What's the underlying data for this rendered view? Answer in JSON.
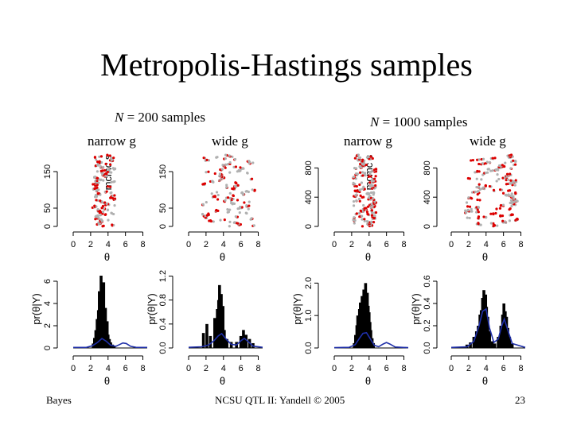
{
  "slide": {
    "title": "Metropolis-Hastings samples",
    "footer_left": "Bayes",
    "footer_center": "NCSU QTL II: Yandell © 2005",
    "page_number": "23"
  },
  "groups": [
    {
      "n_symbol": "N",
      "n_text": "= 200 samples",
      "narrow_label": "narrow g",
      "wide_label": "wide g"
    },
    {
      "n_symbol": "N",
      "n_text": "= 1000 samples",
      "narrow_label": "narrow g",
      "wide_label": "wide g"
    }
  ],
  "chart_data": [
    {
      "type": "scatter",
      "panel": "trace-n200-narrow",
      "ylabel": "mcmc s",
      "xlabel": "θ",
      "xticks": [
        "0",
        "2",
        "4",
        "6",
        "8"
      ],
      "yticks": [
        "0",
        "50",
        "150"
      ],
      "xlim": [
        0,
        8.5
      ],
      "ylim": [
        0,
        200
      ],
      "series": [
        {
          "color": "#b0b0b0"
        },
        {
          "color": "#dd0000"
        }
      ],
      "x_range": [
        2.2,
        4.8
      ],
      "n_points": 200
    },
    {
      "type": "scatter",
      "panel": "trace-n200-wide",
      "ylabel": "",
      "xlabel": "θ",
      "xticks": [
        "0",
        "2",
        "4",
        "6",
        "8"
      ],
      "yticks": [
        "0",
        "50",
        "150"
      ],
      "xlim": [
        0,
        8.5
      ],
      "ylim": [
        0,
        200
      ],
      "series": [
        {
          "color": "#b0b0b0"
        },
        {
          "color": "#dd0000"
        }
      ],
      "x_range": [
        1.6,
        7.6
      ],
      "n_points": 200
    },
    {
      "type": "scatter",
      "panel": "trace-n1000-narrow",
      "ylabel": "mcmc s",
      "xlabel": "θ",
      "xticks": [
        "0",
        "2",
        "4",
        "6",
        "8"
      ],
      "yticks": [
        "0",
        "400",
        "800"
      ],
      "xlim": [
        0,
        8.5
      ],
      "ylim": [
        0,
        1000
      ],
      "series": [
        {
          "color": "#b0b0b0"
        },
        {
          "color": "#dd0000"
        }
      ],
      "x_range": [
        2.2,
        4.8
      ],
      "n_points": 1000
    },
    {
      "type": "scatter",
      "panel": "trace-n1000-wide",
      "ylabel": "",
      "xlabel": "θ",
      "xticks": [
        "0",
        "2",
        "4",
        "6",
        "8"
      ],
      "yticks": [
        "0",
        "400",
        "800"
      ],
      "xlim": [
        0,
        8.5
      ],
      "ylim": [
        0,
        1000
      ],
      "series": [
        {
          "color": "#b0b0b0"
        },
        {
          "color": "#dd0000"
        }
      ],
      "x_range": [
        1.6,
        7.6
      ],
      "n_points": 1000
    },
    {
      "type": "bar",
      "panel": "hist-n200-narrow",
      "ylabel": "pr(θ|Y)",
      "xlabel": "θ",
      "xticks": [
        "0",
        "2",
        "4",
        "6",
        "8"
      ],
      "yticks": [
        "0",
        "2",
        "4",
        "6"
      ],
      "xlim": [
        0,
        8.5
      ],
      "ylim": [
        0,
        7
      ],
      "bars": [
        [
          2.3,
          0.4
        ],
        [
          2.45,
          0.9
        ],
        [
          2.6,
          1.6
        ],
        [
          2.75,
          2.6
        ],
        [
          2.9,
          3.4
        ],
        [
          3.0,
          5.1
        ],
        [
          3.1,
          4.2
        ],
        [
          3.2,
          6.5
        ],
        [
          3.3,
          3.1
        ],
        [
          3.4,
          4.6
        ],
        [
          3.5,
          5.9
        ],
        [
          3.6,
          2.8
        ],
        [
          3.7,
          3.6
        ],
        [
          3.8,
          1.9
        ],
        [
          3.9,
          2.4
        ],
        [
          4.0,
          1.2
        ],
        [
          4.15,
          0.8
        ],
        [
          4.3,
          0.5
        ],
        [
          4.5,
          0.3
        ],
        [
          4.7,
          0.15
        ]
      ],
      "curve": [
        [
          0.0,
          0.05
        ],
        [
          1.5,
          0.05
        ],
        [
          2.2,
          0.2
        ],
        [
          2.8,
          0.5
        ],
        [
          3.3,
          0.85
        ],
        [
          3.8,
          0.6
        ],
        [
          4.3,
          0.25
        ],
        [
          4.9,
          0.15
        ],
        [
          5.3,
          0.3
        ],
        [
          5.7,
          0.45
        ],
        [
          6.1,
          0.4
        ],
        [
          6.6,
          0.15
        ],
        [
          7.2,
          0.06
        ],
        [
          8.5,
          0.05
        ]
      ]
    },
    {
      "type": "bar",
      "panel": "hist-n200-wide",
      "ylabel": "pr(θ|Y)",
      "xlabel": "θ",
      "xticks": [
        "0",
        "2",
        "4",
        "6",
        "8"
      ],
      "yticks": [
        "0.0",
        "0.4",
        "0.8",
        "1.2"
      ],
      "xlim": [
        0,
        8.5
      ],
      "ylim": [
        0,
        1.3
      ],
      "bars": [
        [
          1.7,
          0.25
        ],
        [
          2.1,
          0.4
        ],
        [
          2.5,
          0.2
        ],
        [
          3.0,
          0.5
        ],
        [
          3.3,
          0.65
        ],
        [
          3.45,
          0.8
        ],
        [
          3.55,
          1.05
        ],
        [
          3.65,
          0.6
        ],
        [
          3.75,
          0.9
        ],
        [
          3.85,
          0.45
        ],
        [
          3.95,
          0.7
        ],
        [
          4.1,
          0.3
        ],
        [
          4.4,
          0.15
        ],
        [
          4.9,
          0.1
        ],
        [
          5.5,
          0.1
        ],
        [
          6.0,
          0.2
        ],
        [
          6.3,
          0.3
        ],
        [
          6.6,
          0.22
        ],
        [
          7.0,
          0.15
        ],
        [
          7.4,
          0.08
        ]
      ],
      "curve": [
        [
          0.0,
          0.01
        ],
        [
          1.5,
          0.02
        ],
        [
          2.3,
          0.05
        ],
        [
          2.9,
          0.12
        ],
        [
          3.4,
          0.2
        ],
        [
          3.8,
          0.24
        ],
        [
          4.3,
          0.15
        ],
        [
          4.9,
          0.06
        ],
        [
          5.5,
          0.05
        ],
        [
          6.0,
          0.12
        ],
        [
          6.4,
          0.16
        ],
        [
          6.9,
          0.1
        ],
        [
          7.4,
          0.03
        ],
        [
          8.5,
          0.01
        ]
      ]
    },
    {
      "type": "bar",
      "panel": "hist-n1000-narrow",
      "ylabel": "pr(θ|Y)",
      "xlabel": "θ",
      "xticks": [
        "0",
        "2",
        "4",
        "6",
        "8"
      ],
      "yticks": [
        "0.0",
        "1.0",
        "2.0"
      ],
      "xlim": [
        0,
        8.5
      ],
      "ylim": [
        0,
        2.4
      ],
      "bars": [
        [
          2.3,
          0.15
        ],
        [
          2.45,
          0.4
        ],
        [
          2.6,
          0.7
        ],
        [
          2.7,
          1.0
        ],
        [
          2.8,
          0.9
        ],
        [
          2.9,
          1.2
        ],
        [
          3.0,
          1.4
        ],
        [
          3.1,
          1.35
        ],
        [
          3.2,
          1.6
        ],
        [
          3.3,
          1.5
        ],
        [
          3.4,
          1.8
        ],
        [
          3.5,
          1.7
        ],
        [
          3.6,
          2.0
        ],
        [
          3.7,
          1.55
        ],
        [
          3.8,
          1.7
        ],
        [
          3.9,
          1.3
        ],
        [
          4.0,
          1.1
        ],
        [
          4.1,
          0.8
        ],
        [
          4.2,
          0.55
        ],
        [
          4.35,
          0.3
        ],
        [
          4.5,
          0.15
        ]
      ],
      "curve": [
        [
          0.0,
          0.01
        ],
        [
          1.7,
          0.02
        ],
        [
          2.4,
          0.1
        ],
        [
          2.9,
          0.3
        ],
        [
          3.3,
          0.45
        ],
        [
          3.7,
          0.47
        ],
        [
          4.1,
          0.3
        ],
        [
          4.6,
          0.08
        ],
        [
          5.1,
          0.04
        ],
        [
          5.6,
          0.12
        ],
        [
          6.0,
          0.17
        ],
        [
          6.4,
          0.12
        ],
        [
          7.0,
          0.03
        ],
        [
          8.5,
          0.01
        ]
      ]
    },
    {
      "type": "bar",
      "panel": "hist-n1000-wide",
      "ylabel": "pr(θ|Y)",
      "xlabel": "θ",
      "xticks": [
        "0",
        "2",
        "4",
        "6",
        "8"
      ],
      "yticks": [
        "0.0",
        "0.2",
        "0.4",
        "0.6"
      ],
      "xlim": [
        0,
        8.5
      ],
      "ylim": [
        0,
        0.7
      ],
      "bars": [
        [
          1.8,
          0.03
        ],
        [
          2.2,
          0.05
        ],
        [
          2.6,
          0.1
        ],
        [
          2.9,
          0.15
        ],
        [
          3.1,
          0.2
        ],
        [
          3.3,
          0.3
        ],
        [
          3.45,
          0.34
        ],
        [
          3.6,
          0.45
        ],
        [
          3.75,
          0.52
        ],
        [
          3.85,
          0.4
        ],
        [
          3.95,
          0.48
        ],
        [
          4.05,
          0.37
        ],
        [
          4.2,
          0.28
        ],
        [
          4.4,
          0.15
        ],
        [
          4.7,
          0.06
        ],
        [
          5.0,
          0.04
        ],
        [
          5.4,
          0.1
        ],
        [
          5.7,
          0.2
        ],
        [
          5.9,
          0.3
        ],
        [
          6.05,
          0.4
        ],
        [
          6.2,
          0.33
        ],
        [
          6.35,
          0.28
        ],
        [
          6.5,
          0.18
        ],
        [
          6.7,
          0.1
        ],
        [
          7.0,
          0.04
        ]
      ],
      "curve": [
        [
          0.0,
          0.005
        ],
        [
          1.8,
          0.01
        ],
        [
          2.6,
          0.06
        ],
        [
          3.2,
          0.2
        ],
        [
          3.6,
          0.33
        ],
        [
          4.0,
          0.35
        ],
        [
          4.4,
          0.18
        ],
        [
          4.9,
          0.05
        ],
        [
          5.4,
          0.08
        ],
        [
          5.8,
          0.2
        ],
        [
          6.1,
          0.26
        ],
        [
          6.5,
          0.16
        ],
        [
          7.0,
          0.04
        ],
        [
          8.5,
          0.005
        ]
      ]
    }
  ]
}
